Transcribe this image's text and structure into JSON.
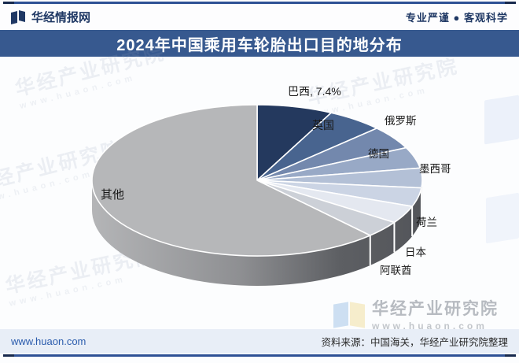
{
  "header": {
    "brand": "华经情报网",
    "slogan": "专业严谨 ● 客观科学"
  },
  "title": {
    "text": "2024年中国乘用车轮胎出口目的地分布"
  },
  "chart_data": {
    "type": "pie",
    "style": "3d-pie",
    "title": "2024年中国乘用车轮胎出口目的地分布",
    "start_angle": "12点钟方向顺时针",
    "value_labels_shown": [
      "巴西, 7.4%"
    ],
    "slices": [
      {
        "name": "巴西",
        "display": "巴西, 7.4%",
        "value": 7.4,
        "color": "#24395e"
      },
      {
        "name": "英国",
        "display": "英国",
        "value": 5.5,
        "color": "#48648f"
      },
      {
        "name": "俄罗斯",
        "display": "俄罗斯",
        "value": 5.0,
        "color": "#7388ad"
      },
      {
        "name": "德国",
        "display": "德国",
        "value": 4.5,
        "color": "#98a9c6"
      },
      {
        "name": "墨西哥",
        "display": "墨西哥",
        "value": 4.2,
        "color": "#b3c0d6"
      },
      {
        "name": "荷兰",
        "display": "荷兰",
        "value": 4.0,
        "color": "#cbd4e4"
      },
      {
        "name": "日本",
        "display": "日本",
        "value": 3.8,
        "color": "#e4e8f0"
      },
      {
        "name": "阿联酋",
        "display": "阿联酋",
        "value": 3.6,
        "color": "#ccd0d7"
      },
      {
        "name": "其他",
        "display": "其他",
        "value": 62.0,
        "color": "#b6b7b9"
      }
    ]
  },
  "watermark": {
    "text": "华经产业研究院",
    "url": "www.huaon.com"
  },
  "footer": {
    "url": "www.huaon.com",
    "source": "资料来源：中国海关，华经产业研究院整理"
  },
  "colors": {
    "accent_line": "#2e5195",
    "accent_dark": "#17294d",
    "title_bar_bg": "#37598f",
    "title_text": "#ffffff",
    "header_text": "#1f3864",
    "footer_bar_bg": "#e8eef7",
    "footer_url_text": "#2b5cad",
    "pie_side_dark": "#53555a"
  }
}
